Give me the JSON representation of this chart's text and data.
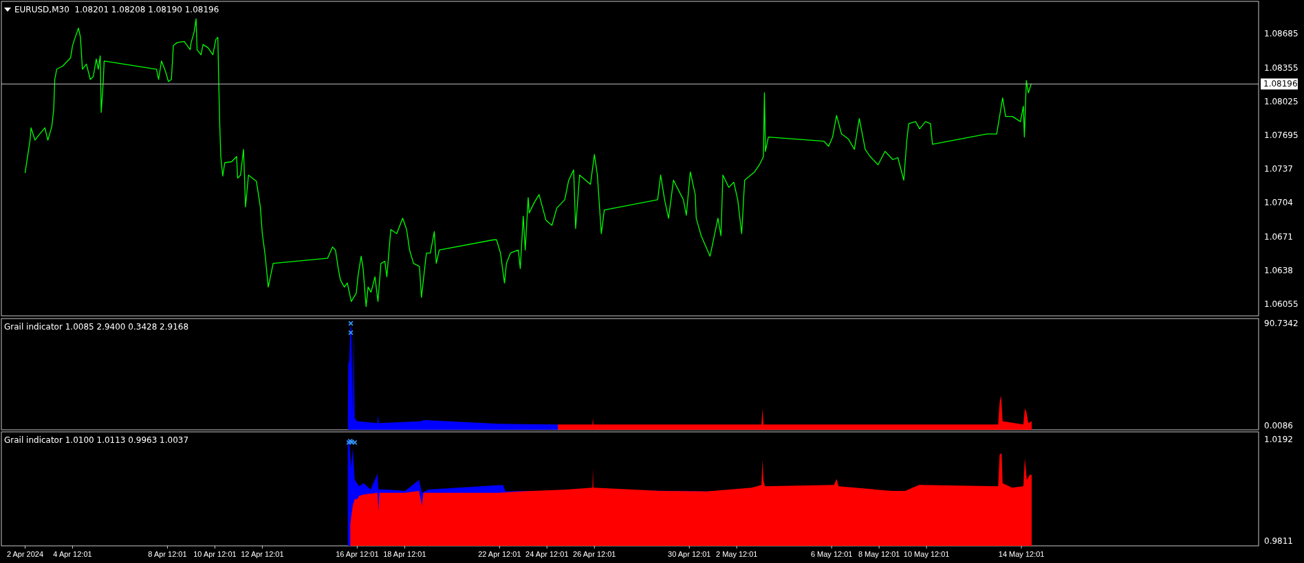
{
  "chart_data": [
    {
      "type": "line",
      "title": "EURUSD,M30  1.08201 1.08208 1.08190 1.08196",
      "xlim": [
        "2024-04-01T12:00",
        "2024-05-24T12:00"
      ],
      "ylim": [
        1.0594,
        1.09
      ],
      "yticks": [
        1.06055,
        1.0638,
        1.0671,
        1.0704,
        1.0737,
        1.07695,
        1.08025,
        1.08355,
        1.08685
      ],
      "tick_labels": "y",
      "ref_lines": [
        {
          "axis": "y",
          "value": 1.08196,
          "label": "1.08196",
          "color": "#c0c0c0"
        }
      ],
      "series": [
        {
          "color": "#00ff00",
          "x": [
            "2024-04-02T12:00",
            "2024-04-02T17:00",
            "2024-04-02T18:00",
            "2024-04-02T22:00",
            "2024-04-03T02:00",
            "2024-04-03T08:00",
            "2024-04-03T11:00",
            "2024-04-03T15:00",
            "2024-04-03T17:00",
            "2024-04-03T18:00",
            "2024-04-03T20:00",
            "2024-04-04T02:00",
            "2024-04-04T10:00",
            "2024-04-04T12:00",
            "2024-04-04T14:00",
            "2024-04-04T18:00",
            "2024-04-04T20:00",
            "2024-04-04T22:00",
            "2024-04-05T02:00",
            "2024-04-05T06:00",
            "2024-04-05T09:00",
            "2024-04-05T12:00",
            "2024-04-05T14:00",
            "2024-04-05T16:00",
            "2024-04-05T17:00",
            "2024-04-05T19:00",
            "2024-04-05T20:00",
            "2024-04-08T01:00",
            "2024-04-08T03:00",
            "2024-04-08T06:00",
            "2024-04-08T10:00",
            "2024-04-08T13:00",
            "2024-04-08T16:00",
            "2024-04-08T18:00",
            "2024-04-08T22:00",
            "2024-04-09T05:00",
            "2024-04-09T11:00",
            "2024-04-09T12:00",
            "2024-04-09T15:00",
            "2024-04-09T17:00",
            "2024-04-09T18:00",
            "2024-04-09T22:00",
            "2024-04-10T00:00",
            "2024-04-10T05:00",
            "2024-04-10T10:00",
            "2024-04-10T13:00",
            "2024-04-10T15:00",
            "2024-04-10T16:00",
            "2024-04-10T17:00",
            "2024-04-10T18:00",
            "2024-04-10T20:00",
            "2024-04-10T22:00",
            "2024-04-11T05:00",
            "2024-04-11T10:00",
            "2024-04-11T11:00",
            "2024-04-11T14:00",
            "2024-04-11T17:00",
            "2024-04-11T19:00",
            "2024-04-11T22:00",
            "2024-04-12T06:00",
            "2024-04-12T10:00",
            "2024-04-12T12:00",
            "2024-04-12T15:00",
            "2024-04-12T18:00",
            "2024-04-12T23:00",
            "2024-04-15T06:00",
            "2024-04-15T11:00",
            "2024-04-15T14:00",
            "2024-04-15T17:00",
            "2024-04-15T19:00",
            "2024-04-15T23:00",
            "2024-04-16T02:00",
            "2024-04-16T06:00",
            "2024-04-16T11:00",
            "2024-04-16T13:00",
            "2024-04-16T16:00",
            "2024-04-16T18:00",
            "2024-04-16T21:00",
            "2024-04-16T23:00",
            "2024-04-17T02:00",
            "2024-04-17T06:00",
            "2024-04-17T09:00",
            "2024-04-17T12:00",
            "2024-04-17T16:00",
            "2024-04-17T18:00",
            "2024-04-17T22:00",
            "2024-04-18T04:00",
            "2024-04-18T10:00",
            "2024-04-18T14:00",
            "2024-04-18T17:00",
            "2024-04-18T21:00",
            "2024-04-19T03:00",
            "2024-04-19T05:00",
            "2024-04-19T10:00",
            "2024-04-19T14:00",
            "2024-04-19T18:00",
            "2024-04-19T20:00",
            "2024-04-19T23:00",
            "2024-04-22T06:00",
            "2024-04-22T09:00",
            "2024-04-22T13:00",
            "2024-04-22T17:00",
            "2024-04-22T19:00",
            "2024-04-22T23:00",
            "2024-04-23T07:00",
            "2024-04-23T09:00",
            "2024-04-23T12:00",
            "2024-04-23T14:00",
            "2024-04-23T17:00",
            "2024-04-23T18:00",
            "2024-04-23T23:00",
            "2024-04-24T04:00",
            "2024-04-24T11:00",
            "2024-04-24T17:00",
            "2024-04-24T22:00",
            "2024-04-25T06:00",
            "2024-04-25T10:00",
            "2024-04-25T15:00",
            "2024-04-25T17:00",
            "2024-04-25T21:00",
            "2024-04-26T08:00",
            "2024-04-26T12:00",
            "2024-04-26T15:00",
            "2024-04-26T19:00",
            "2024-04-26T22:00",
            "2024-04-29T04:00",
            "2024-04-29T07:00",
            "2024-04-29T11:00",
            "2024-04-29T15:00",
            "2024-04-29T20:00",
            "2024-04-30T06:00",
            "2024-04-30T09:00",
            "2024-04-30T13:00",
            "2024-04-30T18:00",
            "2024-04-30T19:00",
            "2024-05-01T00:00",
            "2024-05-01T09:00",
            "2024-05-01T17:00",
            "2024-05-01T20:00",
            "2024-05-01T22:00",
            "2024-05-02T04:00",
            "2024-05-02T09:00",
            "2024-05-02T13:00",
            "2024-05-02T17:00",
            "2024-05-02T20:00",
            "2024-05-03T06:00",
            "2024-05-03T11:00",
            "2024-05-03T15:00",
            "2024-05-03T16:00",
            "2024-05-03T17:00",
            "2024-05-03T20:00",
            "2024-05-06T04:00",
            "2024-05-06T09:00",
            "2024-05-06T13:00",
            "2024-05-06T17:00",
            "2024-05-06T22:00",
            "2024-05-07T05:00",
            "2024-05-07T11:00",
            "2024-05-07T16:00",
            "2024-05-07T22:00",
            "2024-05-08T03:00",
            "2024-05-08T11:00",
            "2024-05-08T18:00",
            "2024-05-09T02:00",
            "2024-05-09T07:00",
            "2024-05-09T13:00",
            "2024-05-09T16:00",
            "2024-05-09T18:00",
            "2024-05-10T01:00",
            "2024-05-10T05:00",
            "2024-05-10T11:00",
            "2024-05-10T16:00",
            "2024-05-10T18:00",
            "2024-05-13T01:00",
            "2024-05-13T11:00",
            "2024-05-13T17:00",
            "2024-05-13T20:00",
            "2024-05-14T03:00",
            "2024-05-14T11:00",
            "2024-05-14T14:00",
            "2024-05-14T15:00",
            "2024-05-14T17:00",
            "2024-05-14T19:00",
            "2024-05-14T22:00"
          ],
          "values": [
            1.0733,
            1.0765,
            1.0777,
            1.0765,
            1.077,
            1.0777,
            1.0765,
            1.0778,
            1.0795,
            1.0824,
            1.0834,
            1.0837,
            1.0845,
            1.0857,
            1.0863,
            1.0874,
            1.0865,
            1.0834,
            1.0839,
            1.0824,
            1.0827,
            1.0844,
            1.0834,
            1.0847,
            1.0792,
            1.0821,
            1.0842,
            1.0834,
            1.0824,
            1.0842,
            1.0832,
            1.0822,
            1.0824,
            1.0857,
            1.086,
            1.0861,
            1.0853,
            1.086,
            1.087,
            1.0883,
            1.0853,
            1.0848,
            1.0858,
            1.0855,
            1.0848,
            1.0863,
            1.0865,
            1.0818,
            1.0778,
            1.0749,
            1.073,
            1.0743,
            1.0744,
            1.0749,
            1.0728,
            1.0731,
            1.0756,
            1.07,
            1.0731,
            1.0725,
            1.07,
            1.0674,
            1.0652,
            1.0622,
            1.0645,
            1.065,
            1.0661,
            1.0658,
            1.0639,
            1.0629,
            1.0622,
            1.0626,
            1.0608,
            1.0616,
            1.0634,
            1.0652,
            1.064,
            1.0603,
            1.0622,
            1.0617,
            1.0632,
            1.0608,
            1.0645,
            1.0647,
            1.0632,
            1.0678,
            1.0674,
            1.0689,
            1.0678,
            1.0658,
            1.0645,
            1.0642,
            1.0612,
            1.0655,
            1.0655,
            1.0676,
            1.0645,
            1.0658,
            1.0668,
            1.0668,
            1.0655,
            1.0626,
            1.0645,
            1.0655,
            1.0658,
            1.064,
            1.0691,
            1.0658,
            1.0709,
            1.0694,
            1.0704,
            1.0712,
            1.0687,
            1.0682,
            1.0699,
            1.0707,
            1.0726,
            1.0736,
            1.0679,
            1.0731,
            1.0722,
            1.0751,
            1.0731,
            1.0674,
            1.0697,
            1.0707,
            1.0731,
            1.0707,
            1.0689,
            1.0726,
            1.0707,
            1.0692,
            1.0734,
            1.0712,
            1.0689,
            1.0672,
            1.0652,
            1.0689,
            1.0672,
            1.0731,
            1.0719,
            1.0724,
            1.0707,
            1.0674,
            1.0726,
            1.0734,
            1.0741,
            1.0749,
            1.0811,
            1.0754,
            1.0768,
            1.0764,
            1.0759,
            1.0768,
            1.0789,
            1.0771,
            1.0766,
            1.0756,
            1.0786,
            1.0756,
            1.0749,
            1.0741,
            1.0754,
            1.0746,
            1.0748,
            1.0726,
            1.0764,
            1.0781,
            1.0783,
            1.0776,
            1.0783,
            1.0781,
            1.0761,
            1.0771,
            1.0771,
            1.0806,
            1.0788,
            1.0788,
            1.0783,
            1.0798,
            1.0768,
            1.0823,
            1.0811,
            1.082
          ]
        }
      ]
    },
    {
      "type": "area",
      "title": "Grail indicator 1.0085 2.9400 0.3428 2.9168",
      "xlim": [
        "2024-04-01T12:00",
        "2024-05-24T12:00"
      ],
      "ylim": [
        -3.65,
        95.0
      ],
      "yticks": [
        0.0086,
        90.7342
      ],
      "tick_labels": "y",
      "series": [
        {
          "color": "#0000ff",
          "x": [
            "2024-04-16T02:30",
            "2024-04-16T03:00",
            "2024-04-16T04:00",
            "2024-04-16T05:00",
            "2024-04-16T06:00",
            "2024-04-16T06:30",
            "2024-04-16T07:30",
            "2024-04-16T08:30",
            "2024-04-16T09:30",
            "2024-04-16T12:00",
            "2024-04-17T08:30",
            "2024-04-17T09:00",
            "2024-04-17T10:00",
            "2024-04-19T05:00",
            "2024-04-19T07:00",
            "2024-04-22T11:00",
            "2024-04-24T23:00"
          ],
          "values": [
            0,
            55.0,
            57.8,
            86.2,
            89.0,
            63.5,
            9.6,
            86.2,
            6.8,
            4.0,
            2.3,
            9.6,
            2.3,
            4.0,
            5.1,
            1.7,
            1.1
          ]
        },
        {
          "color": "#ff0000",
          "x": [
            "2024-04-24T23:00",
            "2024-04-26T10:00",
            "2024-04-26T10:30",
            "2024-04-26T11:00",
            "2024-05-03T13:00",
            "2024-05-03T14:00",
            "2024-05-03T15:00",
            "2024-05-13T12:30",
            "2024-05-13T14:00",
            "2024-05-13T15:30",
            "2024-05-13T17:00",
            "2024-05-14T14:00",
            "2024-05-14T15:30",
            "2024-05-14T17:00",
            "2024-05-14T19:00",
            "2024-05-14T22:30"
          ],
          "values": [
            1.1,
            1.1,
            6.8,
            1.1,
            1.1,
            15.3,
            1.1,
            1.1,
            21.0,
            26.7,
            4.0,
            1.1,
            15.3,
            12.5,
            2.3,
            4.0
          ]
        },
        {
          "type": "scatter",
          "marker": "cross",
          "color": "#3399ff",
          "x": [
            "2024-04-16T05:30",
            "2024-04-16T05:30"
          ],
          "values": [
            90.7,
            82.5
          ]
        }
      ]
    },
    {
      "type": "area",
      "title": "Grail indicator 1.0100 1.0113 0.9963 1.0037",
      "xlim": [
        "2024-04-01T12:00",
        "2024-05-24T12:00"
      ],
      "ylim": [
        0.9793,
        1.022
      ],
      "yticks": [
        0.9811,
        1.0192
      ],
      "xticks": [
        {
          "value": "2024-04-02T12:00",
          "label": "2 Apr 2024"
        },
        {
          "value": "2024-04-04T12:01",
          "label": "4 Apr 12:01"
        },
        {
          "value": "2024-04-08T12:01",
          "label": "8 Apr 12:01"
        },
        {
          "value": "2024-04-10T12:01",
          "label": "10 Apr 12:01"
        },
        {
          "value": "2024-04-12T12:01",
          "label": "12 Apr 12:01"
        },
        {
          "value": "2024-04-16T12:01",
          "label": "16 Apr 12:01"
        },
        {
          "value": "2024-04-18T12:01",
          "label": "18 Apr 12:01"
        },
        {
          "value": "2024-04-22T12:01",
          "label": "22 Apr 12:01"
        },
        {
          "value": "2024-04-24T12:01",
          "label": "24 Apr 12:01"
        },
        {
          "value": "2024-04-26T12:01",
          "label": "26 Apr 12:01"
        },
        {
          "value": "2024-04-30T12:01",
          "label": "30 Apr 12:01"
        },
        {
          "value": "2024-05-02T12:01",
          "label": "2 May 12:01"
        },
        {
          "value": "2024-05-06T12:01",
          "label": "6 May 12:01"
        },
        {
          "value": "2024-05-08T12:01",
          "label": "8 May 12:01"
        },
        {
          "value": "2024-05-10T12:01",
          "label": "10 May 12:01"
        },
        {
          "value": "2024-05-14T12:01",
          "label": "14 May 12:01"
        }
      ],
      "series": [
        {
          "color": "#0000ff",
          "x": [
            "2024-04-16T02:30",
            "2024-04-16T04:00",
            "2024-04-16T06:00",
            "2024-04-16T07:30",
            "2024-04-16T09:30",
            "2024-04-16T14:00",
            "2024-04-16T18:30",
            "2024-04-17T01:30",
            "2024-04-17T08:30",
            "2024-04-17T09:30",
            "2024-04-17T18:00",
            "2024-04-18T12:30",
            "2024-04-19T02:30",
            "2024-04-19T05:30",
            "2024-04-19T12:00",
            "2024-04-22T15:30",
            "2024-04-22T18:00",
            "2024-04-23T10:00",
            "2024-04-24T23:00",
            "2024-04-25T08:30",
            "2024-05-01T05:30",
            "2024-05-01T14:30"
          ],
          "values": [
            1.0192,
            1.0182,
            1.0087,
            1.0159,
            1.004,
            1.0016,
            1.0028,
            1.0004,
            1.0063,
            1.0004,
            1.0004,
            0.9999,
            1.004,
            0.9992,
            1.0004,
            1.0021,
            0.9997,
            0.9999,
            0.9999,
            1.0004,
            0.9997,
            0.9997
          ]
        },
        {
          "color": "#ff0000",
          "x": [
            "2024-04-16T05:00",
            "2024-04-16T07:30",
            "2024-04-16T09:30",
            "2024-04-16T12:00",
            "2024-04-16T14:00",
            "2024-04-16T18:30",
            "2024-04-17T08:30",
            "2024-04-17T09:30",
            "2024-04-17T10:30",
            "2024-04-18T12:30",
            "2024-04-19T02:30",
            "2024-04-19T05:30",
            "2024-04-19T07:00",
            "2024-04-22T11:00",
            "2024-04-23T10:00",
            "2024-04-25T08:30",
            "2024-04-26T10:00",
            "2024-04-26T10:30",
            "2024-04-26T11:00",
            "2024-04-29T07:00",
            "2024-05-01T05:30",
            "2024-05-03T03:30",
            "2024-05-03T13:00",
            "2024-05-03T14:00",
            "2024-05-03T15:00",
            "2024-05-03T16:30",
            "2024-05-06T14:30",
            "2024-05-06T17:00",
            "2024-05-06T19:00",
            "2024-05-09T00:30",
            "2024-05-09T14:30",
            "2024-05-10T04:30",
            "2024-05-13T12:30",
            "2024-05-13T14:00",
            "2024-05-13T16:00",
            "2024-05-13T17:00",
            "2024-05-14T02:30",
            "2024-05-14T14:00",
            "2024-05-14T15:30",
            "2024-05-14T17:30",
            "2024-05-14T20:30",
            "2024-05-14T22:30"
          ],
          "values": [
            0.9873,
            0.9944,
            0.9968,
            0.9968,
            0.998,
            0.9985,
            0.9992,
            0.9925,
            0.9992,
            0.9992,
            0.9999,
            0.9944,
            0.9992,
            0.9992,
            0.9997,
            1.0004,
            1.0011,
            1.0083,
            1.0011,
            0.9999,
            0.9997,
            1.0011,
            1.0021,
            1.0116,
            1.004,
            1.0016,
            1.0021,
            1.0044,
            1.0016,
            0.9999,
            0.9999,
            1.0021,
            1.0016,
            1.0135,
            1.014,
            1.0028,
            1.0011,
            1.0016,
            1.0121,
            1.004,
            1.0059,
            1.0059
          ]
        },
        {
          "type": "scatter",
          "marker": "cross",
          "color": "#3399ff",
          "x": [
            "2024-04-16T03:30",
            "2024-04-16T05:00",
            "2024-04-16T06:30",
            "2024-04-16T09:30"
          ],
          "values": [
            1.018,
            1.0185,
            1.0182,
            1.018
          ]
        }
      ]
    }
  ]
}
